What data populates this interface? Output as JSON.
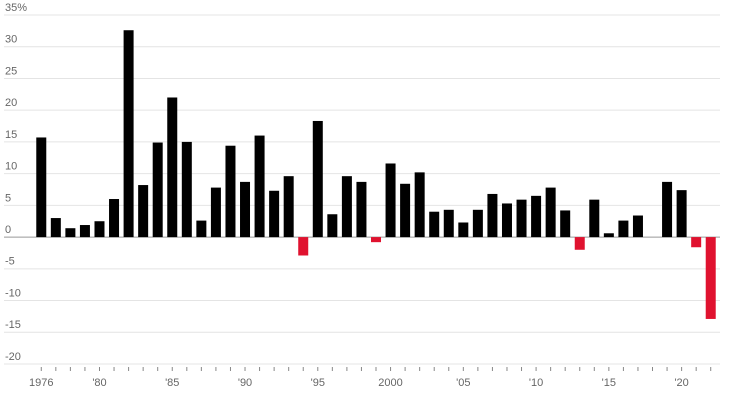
{
  "chart_data": {
    "type": "bar",
    "categories": [
      "1976",
      null,
      null,
      null,
      "'80",
      null,
      null,
      null,
      null,
      "'85",
      null,
      null,
      null,
      null,
      "'90",
      null,
      null,
      null,
      null,
      "'95",
      null,
      null,
      null,
      null,
      "2000",
      null,
      null,
      null,
      null,
      "'05",
      null,
      null,
      null,
      null,
      "'10",
      null,
      null,
      null,
      null,
      "'15",
      null,
      null,
      null,
      null,
      "'20",
      null,
      null
    ],
    "values": [
      15.7,
      3.0,
      1.4,
      1.9,
      2.5,
      6.0,
      32.6,
      8.2,
      14.9,
      22.0,
      15.0,
      2.6,
      7.8,
      14.4,
      8.7,
      16.0,
      7.3,
      9.6,
      -2.9,
      18.3,
      3.6,
      9.6,
      8.7,
      -0.8,
      11.6,
      8.4,
      10.2,
      4.0,
      4.3,
      2.3,
      4.3,
      6.8,
      5.3,
      5.9,
      6.5,
      7.8,
      4.2,
      -2.0,
      5.9,
      0.6,
      2.6,
      3.4,
      null,
      8.7,
      7.4,
      -1.6,
      -12.9
    ],
    "color": "#000000",
    "negative_color": "#e0122f",
    "ylim": [
      -20,
      35
    ],
    "yticks": [
      {
        "value": 35,
        "label": "35%"
      },
      30,
      25,
      20,
      15,
      10,
      5,
      0,
      -5,
      -10,
      -15,
      -20
    ],
    "grid": true
  }
}
